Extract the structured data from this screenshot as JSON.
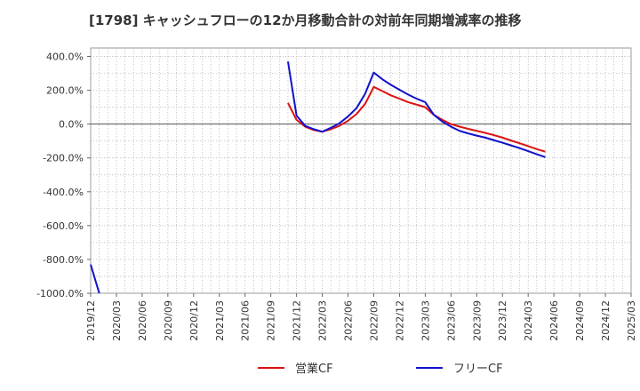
{
  "chart_data": {
    "type": "line",
    "title": "[1798]  キャッシュフローの12か月移動合計の対前年同期増減率の推移",
    "xlabel": "",
    "ylabel": "",
    "ylim": [
      -1000,
      450
    ],
    "y_ticks": [
      400,
      200,
      0,
      -200,
      -400,
      -600,
      -800,
      -1000
    ],
    "y_tick_labels": [
      "400.0%",
      "200.0%",
      "0.0%",
      "-200.0%",
      "-400.0%",
      "-600.0%",
      "-800.0%",
      "-1000.0%"
    ],
    "x_tick_labels": [
      "2019/12",
      "2020/03",
      "2020/06",
      "2020/09",
      "2020/12",
      "2021/03",
      "2021/06",
      "2021/09",
      "2021/12",
      "2022/03",
      "2022/06",
      "2022/09",
      "2022/12",
      "2023/03",
      "2023/06",
      "2023/09",
      "2023/12",
      "2024/03",
      "2024/06",
      "2024/09",
      "2024/12",
      "2025/03"
    ],
    "grid": true,
    "legend_position": "bottom",
    "series": [
      {
        "name": "営業CF",
        "color": "#dd1111",
        "points": [
          [
            "2021/11",
            125
          ],
          [
            "2021/12",
            25
          ],
          [
            "2022/01",
            -15
          ],
          [
            "2022/02",
            -35
          ],
          [
            "2022/03",
            -45
          ],
          [
            "2022/04",
            -30
          ],
          [
            "2022/05",
            -10
          ],
          [
            "2022/06",
            20
          ],
          [
            "2022/07",
            60
          ],
          [
            "2022/08",
            120
          ],
          [
            "2022/09",
            220
          ],
          [
            "2022/10",
            195
          ],
          [
            "2022/11",
            170
          ],
          [
            "2022/12",
            150
          ],
          [
            "2023/01",
            130
          ],
          [
            "2023/02",
            115
          ],
          [
            "2023/03",
            100
          ],
          [
            "2023/04",
            55
          ],
          [
            "2023/05",
            25
          ],
          [
            "2023/06",
            0
          ],
          [
            "2023/07",
            -15
          ],
          [
            "2023/08",
            -28
          ],
          [
            "2023/09",
            -40
          ],
          [
            "2023/10",
            -52
          ],
          [
            "2023/11",
            -65
          ],
          [
            "2023/12",
            -80
          ],
          [
            "2024/01",
            -97
          ],
          [
            "2024/02",
            -113
          ],
          [
            "2024/03",
            -130
          ],
          [
            "2024/04",
            -148
          ],
          [
            "2024/05",
            -163
          ]
        ]
      },
      {
        "name": "フリーCF",
        "color": "#1111cc",
        "points": [
          [
            "2019/12",
            -830
          ],
          [
            "2020/01",
            -1000
          ],
          [
            "2021/11",
            370
          ],
          [
            "2021/12",
            50
          ],
          [
            "2022/01",
            -10
          ],
          [
            "2022/02",
            -30
          ],
          [
            "2022/03",
            -45
          ],
          [
            "2022/04",
            -22
          ],
          [
            "2022/05",
            5
          ],
          [
            "2022/06",
            45
          ],
          [
            "2022/07",
            95
          ],
          [
            "2022/08",
            180
          ],
          [
            "2022/09",
            305
          ],
          [
            "2022/10",
            265
          ],
          [
            "2022/11",
            232
          ],
          [
            "2022/12",
            203
          ],
          [
            "2023/01",
            175
          ],
          [
            "2023/02",
            150
          ],
          [
            "2023/03",
            130
          ],
          [
            "2023/04",
            55
          ],
          [
            "2023/05",
            15
          ],
          [
            "2023/06",
            -15
          ],
          [
            "2023/07",
            -40
          ],
          [
            "2023/08",
            -55
          ],
          [
            "2023/09",
            -68
          ],
          [
            "2023/10",
            -80
          ],
          [
            "2023/11",
            -95
          ],
          [
            "2023/12",
            -110
          ],
          [
            "2024/01",
            -126
          ],
          [
            "2024/02",
            -142
          ],
          [
            "2024/03",
            -160
          ],
          [
            "2024/04",
            -178
          ],
          [
            "2024/05",
            -195
          ]
        ]
      }
    ]
  }
}
